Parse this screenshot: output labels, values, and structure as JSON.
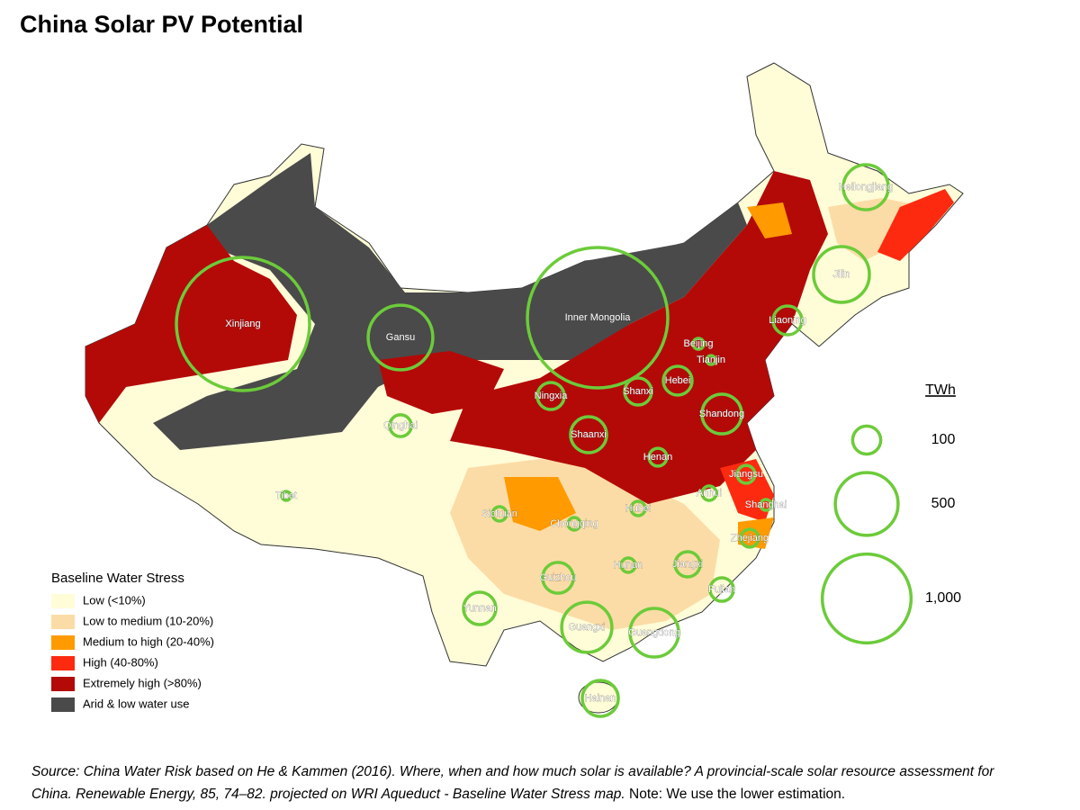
{
  "title": "China Solar PV Potential",
  "legend": {
    "title": "Baseline Water Stress",
    "items": [
      {
        "label": "Low (<10%)",
        "color": "#fffcd8"
      },
      {
        "label": "Low to medium (10-20%)",
        "color": "#fcdca6"
      },
      {
        "label": "Medium to high (20-40%)",
        "color": "#ff9a00"
      },
      {
        "label": "High (40-80%)",
        "color": "#fd2a0f"
      },
      {
        "label": "Extremely high (>80%)",
        "color": "#b30a08"
      },
      {
        "label": "Arid & low water use",
        "color": "#4a4a4a"
      }
    ]
  },
  "bubble_legend": {
    "title": "TWh",
    "color": "#6ccb3a",
    "sizes": [
      100,
      500,
      {
        "value": 1000,
        "label": "1,000"
      }
    ]
  },
  "provinces": [
    {
      "name": "Xinjiang",
      "twh": 2250
    },
    {
      "name": "Inner Mongolia",
      "twh": 2500
    },
    {
      "name": "Gansu",
      "twh": 530
    },
    {
      "name": "Heilongjiang",
      "twh": 257
    },
    {
      "name": "Jilin",
      "twh": 395
    },
    {
      "name": "Liaoning",
      "twh": 105
    },
    {
      "name": "Beijing",
      "twh": 15
    },
    {
      "name": "Tianjin",
      "twh": 10
    },
    {
      "name": "Hebei",
      "twh": 105
    },
    {
      "name": "Shanxi",
      "twh": 92
    },
    {
      "name": "Ningxia",
      "twh": 92
    },
    {
      "name": "Shandong",
      "twh": 200
    },
    {
      "name": "Shaanxi",
      "twh": 165
    },
    {
      "name": "Qinghai",
      "twh": 60
    },
    {
      "name": "Henan",
      "twh": 40
    },
    {
      "name": "Jiangsu",
      "twh": 40
    },
    {
      "name": "Anhui",
      "twh": 26
    },
    {
      "name": "Shanghai",
      "twh": 15
    },
    {
      "name": "Zhejiang",
      "twh": 40
    },
    {
      "name": "Hubei",
      "twh": 26
    },
    {
      "name": "Chongqing",
      "twh": 20
    },
    {
      "name": "Sichuan",
      "twh": 26
    },
    {
      "name": "Tibet",
      "twh": 10
    },
    {
      "name": "Jiangxi",
      "twh": 80
    },
    {
      "name": "Hunan",
      "twh": 26
    },
    {
      "name": "Guizhou",
      "twh": 120
    },
    {
      "name": "Fujian",
      "twh": 70
    },
    {
      "name": "Yunnan",
      "twh": 133
    },
    {
      "name": "Guangxi",
      "twh": 320
    },
    {
      "name": "Guangdong",
      "twh": 300
    },
    {
      "name": "Hainan",
      "twh": 165
    }
  ],
  "source": "Source: China Water Risk based on He & Kammen (2016). Where, when and how much solar is available? A provincial-scale solar resource assessment for China. Renewable Energy, 85, 74–82.  projected on WRI Aqueduct - Baseline Water Stress map.",
  "note": "Note: We use the lower estimation."
}
